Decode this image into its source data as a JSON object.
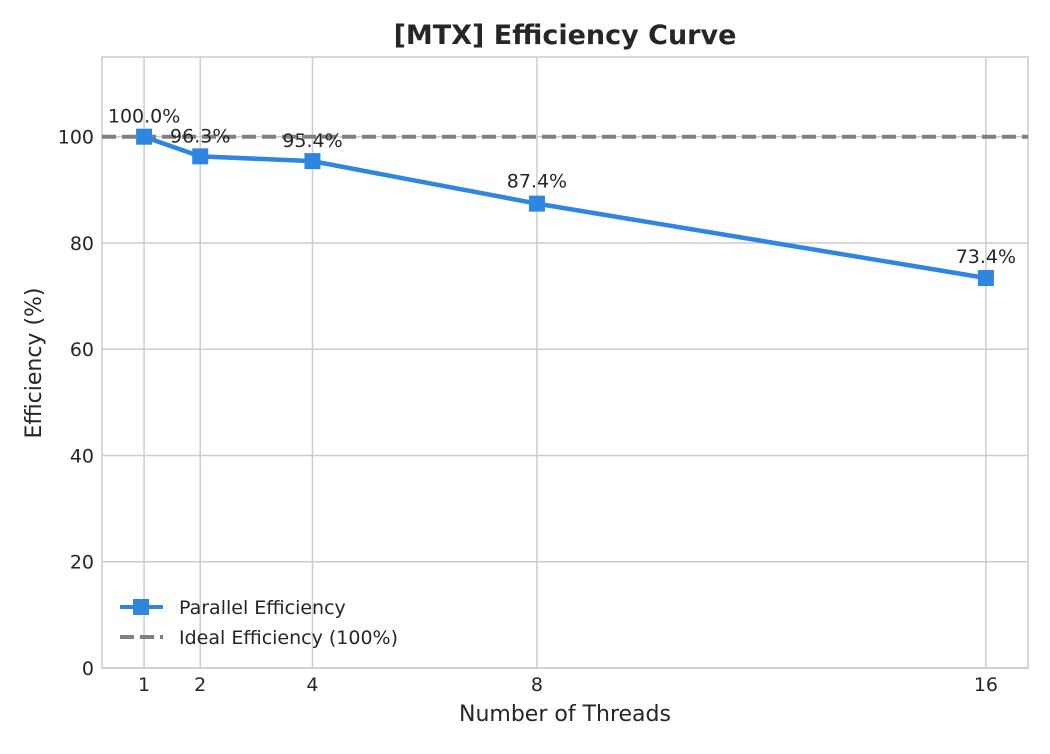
{
  "chart_data": {
    "type": "line",
    "title": "[MTX] Efficiency Curve",
    "xlabel": "Number of Threads",
    "ylabel": "Efficiency (%)",
    "x": [
      1,
      2,
      4,
      8,
      16
    ],
    "xticks": [
      1,
      2,
      4,
      8,
      16
    ],
    "yticks": [
      0,
      20,
      40,
      60,
      80,
      100
    ],
    "xlim": [
      0.25,
      16.75
    ],
    "ylim": [
      0,
      115
    ],
    "grid": true,
    "legend_position": "lower-left",
    "series": [
      {
        "name": "Parallel Efficiency",
        "values": [
          100.0,
          96.3,
          95.4,
          87.4,
          73.4
        ],
        "data_labels": [
          "100.0%",
          "96.3%",
          "95.4%",
          "87.4%",
          "73.4%"
        ],
        "color": "#2e86de",
        "marker": "square",
        "line_style": "solid"
      },
      {
        "name": "Ideal Efficiency (100%)",
        "constant": 100,
        "color": "#808080",
        "line_style": "dashed"
      }
    ]
  }
}
